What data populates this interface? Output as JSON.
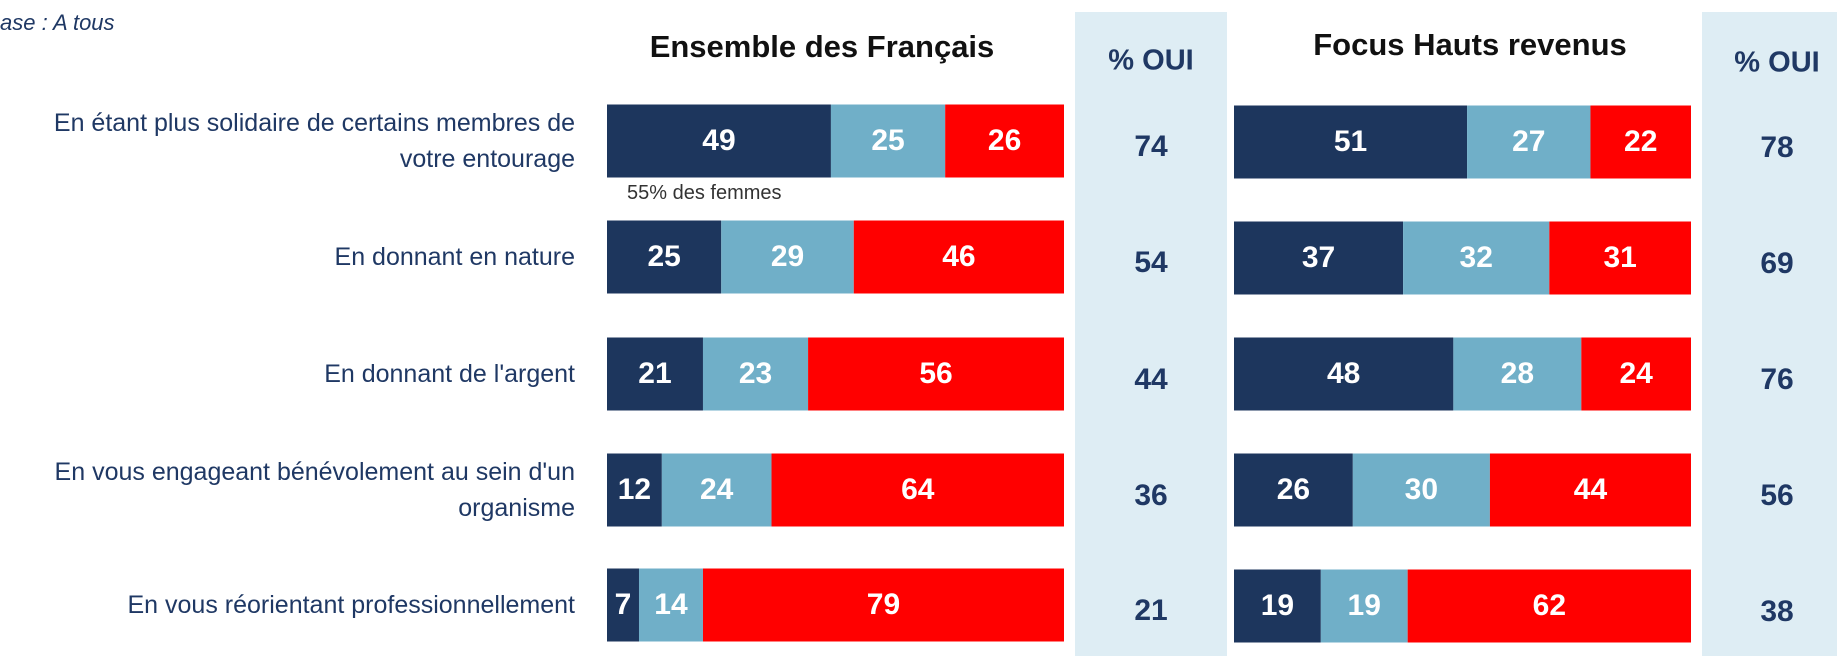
{
  "base": "ase : A tous",
  "chart_data": [
    {
      "type": "stacked-bar",
      "title": "Ensemble des Français",
      "categories": [
        "En étant plus solidaire de certains membres de votre entourage",
        "En donnant en nature",
        "En donnant de l'argent",
        "En vous engageant bénévolement au sein d'un organisme",
        "En vous réorientant professionnellement"
      ],
      "xlim": [
        0,
        100
      ],
      "series": [
        {
          "color": "#1d365d",
          "values": [
            49,
            25,
            21,
            12,
            7
          ]
        },
        {
          "color": "#70afc8",
          "values": [
            25,
            29,
            23,
            24,
            14
          ]
        },
        {
          "color": "#ff0000",
          "values": [
            26,
            46,
            56,
            64,
            79
          ]
        }
      ],
      "annotation": "55% des femmes",
      "oui_header": "% OUI",
      "oui_values": [
        74,
        54,
        44,
        36,
        21
      ]
    },
    {
      "type": "stacked-bar",
      "title": "Focus Hauts revenus",
      "xlim": [
        0,
        100
      ],
      "series": [
        {
          "color": "#1d365d",
          "values": [
            51,
            37,
            48,
            26,
            19
          ]
        },
        {
          "color": "#70afc8",
          "values": [
            27,
            32,
            28,
            30,
            19
          ]
        },
        {
          "color": "#ff0000",
          "values": [
            22,
            31,
            24,
            44,
            62
          ]
        }
      ],
      "oui_header": "% OUI",
      "oui_values": [
        78,
        69,
        76,
        56,
        38
      ]
    }
  ]
}
